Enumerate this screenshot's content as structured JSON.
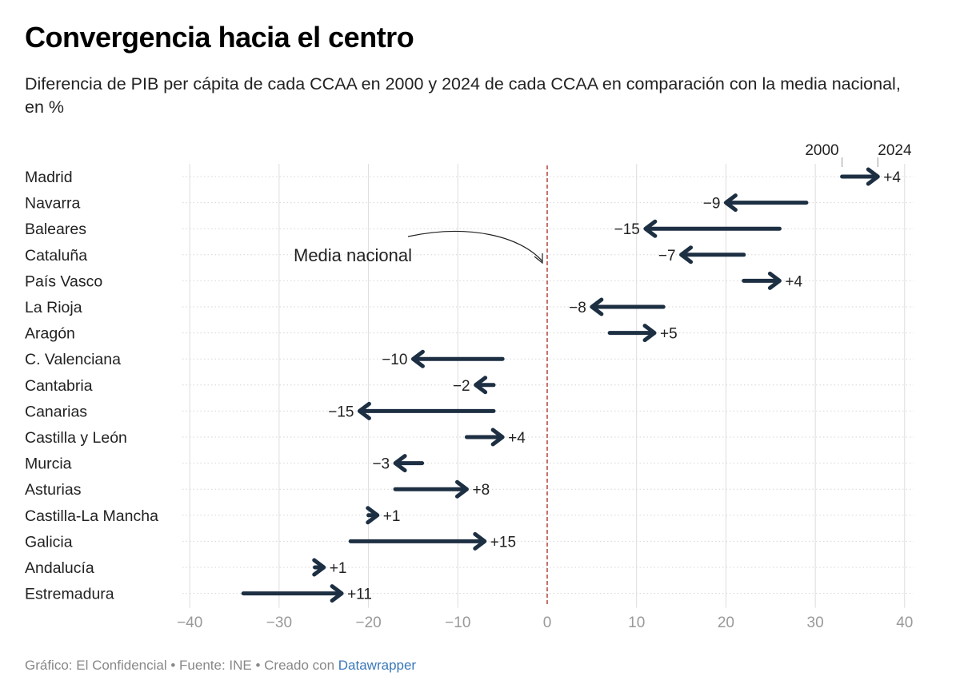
{
  "header": {
    "title": "Convergencia hacia el centro",
    "subtitle": "Diferencia de PIB per cápita de cada CCAA en 2000 y 2024 de cada CCAA en comparación con la media nacional, en %"
  },
  "footer": {
    "credit": "Gráfico: El Confidencial • Fuente: INE • Creado con ",
    "link_text": "Datawrapper"
  },
  "colors": {
    "arrow": "#1d2f42",
    "reference_line": "#c4736b",
    "grid": "#dddddd",
    "axis_text": "#999999"
  },
  "chart_data": {
    "type": "arrow",
    "title": "Convergencia hacia el centro",
    "subtitle": "Diferencia de PIB per cápita de cada CCAA en 2000 y 2024 de cada CCAA en comparación con la media nacional, en %",
    "xlim": [
      -40,
      40
    ],
    "xticks": [
      -40,
      -30,
      -20,
      -10,
      0,
      10,
      20,
      30,
      40
    ],
    "xtick_labels": [
      "−40",
      "−30",
      "−20",
      "−10",
      "0",
      "10",
      "20",
      "30",
      "40"
    ],
    "grid": true,
    "legend": {
      "start_label": "2000",
      "end_label": "2024"
    },
    "reference_line": {
      "x": 0,
      "label": "Media nacional"
    },
    "rows": [
      {
        "region": "Madrid",
        "start": 33,
        "end": 37,
        "change": "+4"
      },
      {
        "region": "Navarra",
        "start": 29,
        "end": 20,
        "change": "−9"
      },
      {
        "region": "Baleares",
        "start": 26,
        "end": 11,
        "change": "−15"
      },
      {
        "region": "Cataluña",
        "start": 22,
        "end": 15,
        "change": "−7"
      },
      {
        "region": "País Vasco",
        "start": 22,
        "end": 26,
        "change": "+4"
      },
      {
        "region": "La Rioja",
        "start": 13,
        "end": 5,
        "change": "−8"
      },
      {
        "region": "Aragón",
        "start": 7,
        "end": 12,
        "change": "+5"
      },
      {
        "region": "C. Valenciana",
        "start": -5,
        "end": -15,
        "change": "−10"
      },
      {
        "region": "Cantabria",
        "start": -6,
        "end": -8,
        "change": "−2"
      },
      {
        "region": "Canarias",
        "start": -6,
        "end": -21,
        "change": "−15"
      },
      {
        "region": "Castilla y León",
        "start": -9,
        "end": -5,
        "change": "+4"
      },
      {
        "region": "Murcia",
        "start": -14,
        "end": -17,
        "change": "−3"
      },
      {
        "region": "Asturias",
        "start": -17,
        "end": -9,
        "change": "+8"
      },
      {
        "region": "Castilla-La Mancha",
        "start": -20,
        "end": -19,
        "change": "+1"
      },
      {
        "region": "Galicia",
        "start": -22,
        "end": -7,
        "change": "+15"
      },
      {
        "region": "Andalucía",
        "start": -26,
        "end": -25,
        "change": "+1"
      },
      {
        "region": "Estremadura",
        "start": -34,
        "end": -23,
        "change": "+11"
      }
    ]
  }
}
